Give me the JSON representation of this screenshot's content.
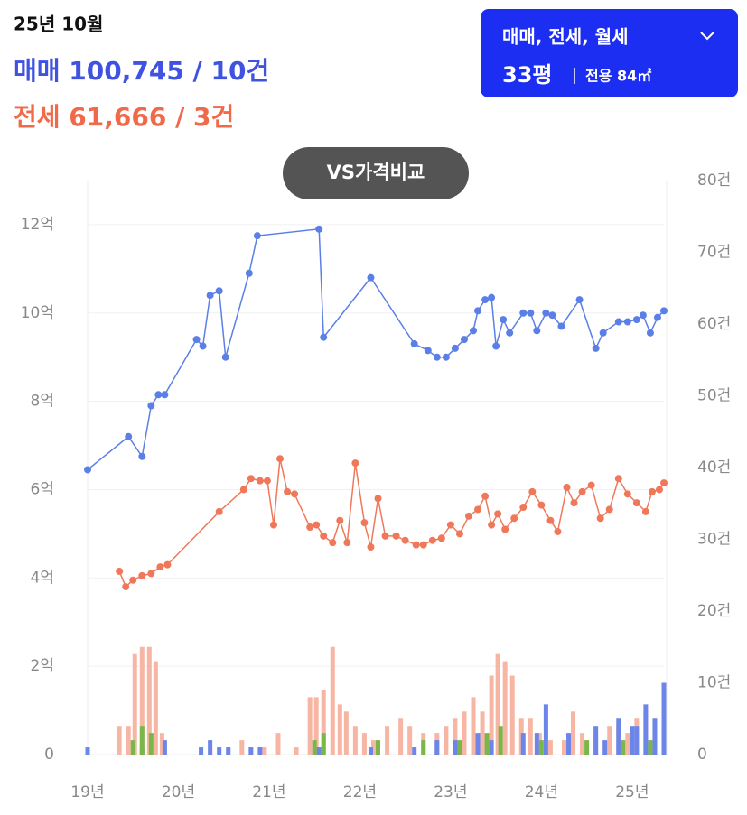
{
  "header": {
    "date": "25년 10월",
    "sale": "매매 100,745 / 10건",
    "jeonse": "전세 61,666 / 3건"
  },
  "filter": {
    "types": "매매, 전세, 월세",
    "size": "33평",
    "area": "전용 84㎡"
  },
  "compare_button": "VS가격비교",
  "chart_data": {
    "type": "line",
    "xlim": [
      2019,
      2025.35
    ],
    "xticks": [
      {
        "value": 2019,
        "label": "19년"
      },
      {
        "value": 2020,
        "label": "20년"
      },
      {
        "value": 2021,
        "label": "21년"
      },
      {
        "value": 2022,
        "label": "22년"
      },
      {
        "value": 2023,
        "label": "23년"
      },
      {
        "value": 2024,
        "label": "24년"
      },
      {
        "value": 2025,
        "label": "25년"
      }
    ],
    "ylim": [
      0,
      13
    ],
    "yticks": [
      0,
      {
        "value": 2,
        "label": "2억"
      },
      {
        "value": 4,
        "label": "4억"
      },
      {
        "value": 6,
        "label": "6억"
      },
      {
        "value": 8,
        "label": "8억"
      },
      {
        "value": 10,
        "label": "10억"
      },
      {
        "value": 12,
        "label": "12억"
      }
    ],
    "y2lim": [
      0,
      80
    ],
    "y2ticks": [
      0,
      {
        "value": 10,
        "label": "10건"
      },
      {
        "value": 20,
        "label": "20건"
      },
      {
        "value": 30,
        "label": "30건"
      },
      {
        "value": 40,
        "label": "40건"
      },
      {
        "value": 50,
        "label": "50건"
      },
      {
        "value": 60,
        "label": "60건"
      },
      {
        "value": 70,
        "label": "70건"
      },
      {
        "value": 80,
        "label": "80건"
      }
    ],
    "grid": true,
    "series": [
      {
        "type": "line",
        "color": "#5b7fe6",
        "x": [
          2019.0,
          2019.45,
          2019.6,
          2019.7,
          2019.78,
          2019.85,
          2020.2,
          2020.27,
          2020.35,
          2020.45,
          2020.52,
          2020.78,
          2020.87,
          2021.55,
          2021.6,
          2022.12,
          2022.6,
          2022.75,
          2022.85,
          2022.95,
          2023.05,
          2023.15,
          2023.25,
          2023.3,
          2023.38,
          2023.45,
          2023.5,
          2023.58,
          2023.65,
          2023.8,
          2023.88,
          2023.95,
          2024.05,
          2024.12,
          2024.22,
          2024.42,
          2024.6,
          2024.68,
          2024.85,
          2024.95,
          2025.05,
          2025.12,
          2025.2,
          2025.28,
          2025.35
        ],
        "values": [
          6.45,
          7.2,
          6.75,
          7.9,
          8.15,
          8.15,
          9.4,
          9.25,
          10.4,
          10.5,
          9.0,
          10.9,
          11.75,
          11.9,
          9.45,
          10.8,
          9.3,
          9.15,
          9.0,
          9.0,
          9.2,
          9.4,
          9.6,
          10.05,
          10.3,
          10.35,
          9.25,
          9.85,
          9.55,
          10.0,
          10.0,
          9.6,
          10.0,
          9.95,
          9.7,
          10.3,
          9.2,
          9.55,
          9.8,
          9.8,
          9.85,
          9.95,
          9.55,
          9.9,
          10.05
        ]
      },
      {
        "type": "line",
        "color": "#f0785a",
        "x": [
          2019.35,
          2019.42,
          2019.5,
          2019.6,
          2019.7,
          2019.8,
          2019.88,
          2020.45,
          2020.72,
          2020.8,
          2020.9,
          2020.98,
          2021.05,
          2021.12,
          2021.2,
          2021.28,
          2021.45,
          2021.52,
          2021.6,
          2021.7,
          2021.78,
          2021.86,
          2021.95,
          2022.05,
          2022.12,
          2022.2,
          2022.28,
          2022.4,
          2022.5,
          2022.62,
          2022.7,
          2022.8,
          2022.9,
          2023.0,
          2023.1,
          2023.2,
          2023.3,
          2023.38,
          2023.45,
          2023.52,
          2023.6,
          2023.7,
          2023.8,
          2023.9,
          2024.0,
          2024.1,
          2024.18,
          2024.28,
          2024.36,
          2024.45,
          2024.55,
          2024.65,
          2024.75,
          2024.85,
          2024.95,
          2025.05,
          2025.15,
          2025.22,
          2025.3,
          2025.35
        ],
        "values": [
          4.15,
          3.8,
          3.95,
          4.05,
          4.1,
          4.25,
          4.3,
          5.5,
          6.0,
          6.25,
          6.2,
          6.2,
          5.2,
          6.7,
          5.95,
          5.9,
          5.15,
          5.2,
          4.95,
          4.8,
          5.3,
          4.8,
          6.6,
          5.25,
          4.7,
          5.8,
          4.95,
          4.95,
          4.85,
          4.75,
          4.75,
          4.85,
          4.9,
          5.2,
          5.0,
          5.4,
          5.55,
          5.85,
          5.2,
          5.45,
          5.1,
          5.35,
          5.6,
          5.95,
          5.65,
          5.3,
          5.05,
          6.05,
          5.7,
          5.95,
          6.1,
          5.35,
          5.55,
          6.25,
          5.9,
          5.7,
          5.5,
          5.95,
          6.0,
          6.15
        ]
      },
      {
        "type": "bar",
        "axis": "y2",
        "color": "#f7b5a3",
        "x": [
          2019.35,
          2019.45,
          2019.52,
          2019.6,
          2019.68,
          2019.75,
          2019.82,
          2020.7,
          2020.95,
          2021.1,
          2021.3,
          2021.45,
          2021.52,
          2021.6,
          2021.7,
          2021.78,
          2021.85,
          2021.95,
          2022.05,
          2022.15,
          2022.3,
          2022.45,
          2022.55,
          2022.7,
          2022.85,
          2022.95,
          2023.05,
          2023.15,
          2023.25,
          2023.35,
          2023.45,
          2023.52,
          2023.6,
          2023.68,
          2023.78,
          2023.88,
          2023.98,
          2024.1,
          2024.25,
          2024.35,
          2024.45,
          2024.6,
          2024.75,
          2024.85,
          2024.95,
          2025.05,
          2025.15,
          2025.25,
          2025.35
        ],
        "values": [
          4,
          4,
          14,
          15,
          15,
          13,
          3,
          2,
          1,
          3,
          1,
          8,
          8,
          9,
          15,
          7,
          6,
          4,
          3,
          2,
          4,
          5,
          4,
          3,
          3,
          4,
          5,
          6,
          8,
          6,
          11,
          14,
          13,
          11,
          5,
          5,
          3,
          2,
          2,
          6,
          3,
          3,
          4,
          4,
          3,
          5,
          6,
          3,
          3
        ]
      },
      {
        "type": "bar",
        "axis": "y2",
        "color": "#6b85e8",
        "x": [
          2019.0,
          2019.6,
          2019.85,
          2020.25,
          2020.35,
          2020.45,
          2020.55,
          2020.8,
          2020.9,
          2021.55,
          2022.12,
          2022.6,
          2022.85,
          2023.05,
          2023.3,
          2023.45,
          2023.8,
          2023.95,
          2024.05,
          2024.3,
          2024.6,
          2024.7,
          2024.85,
          2025.0,
          2025.05,
          2025.15,
          2025.25,
          2025.35
        ],
        "values": [
          1,
          1,
          2,
          1,
          2,
          1,
          1,
          1,
          1,
          1,
          1,
          1,
          2,
          2,
          3,
          2,
          3,
          3,
          7,
          3,
          4,
          2,
          5,
          4,
          4,
          7,
          5,
          10
        ]
      },
      {
        "type": "bar",
        "axis": "y2",
        "color": "#7ab648",
        "x": [
          2019.5,
          2019.6,
          2019.7,
          2021.5,
          2021.6,
          2022.2,
          2022.7,
          2023.1,
          2023.4,
          2023.55,
          2024.0,
          2024.5,
          2024.9,
          2025.2
        ],
        "values": [
          2,
          4,
          3,
          2,
          3,
          2,
          2,
          2,
          3,
          4,
          2,
          2,
          2,
          2
        ]
      }
    ]
  }
}
